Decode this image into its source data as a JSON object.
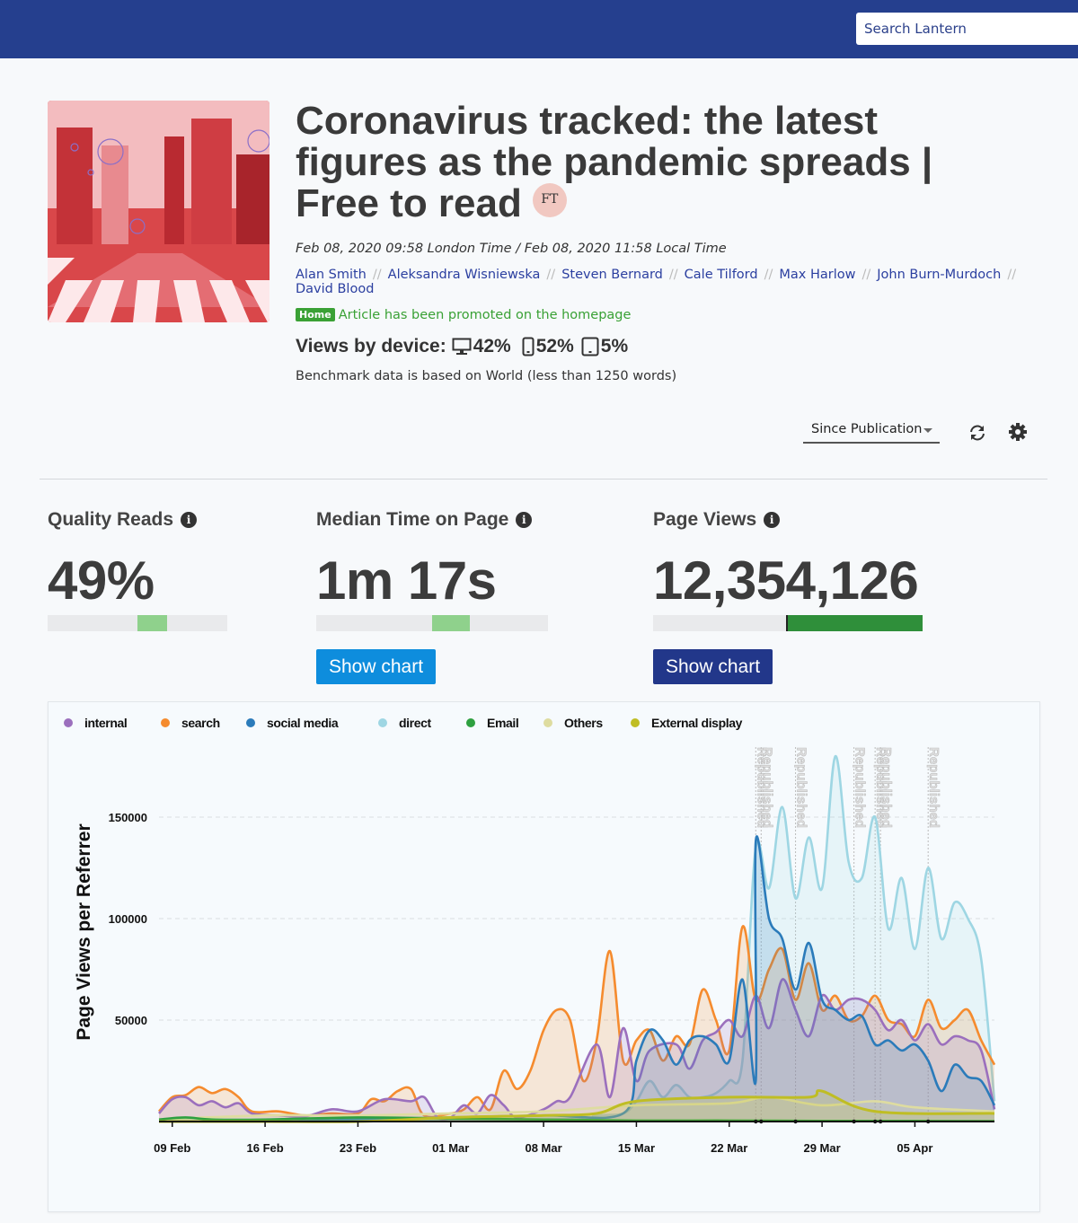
{
  "search": {
    "placeholder": "Search Lantern"
  },
  "article": {
    "title": "Coronavirus tracked: the latest figures as the pandemic spreads | Free to read",
    "publisher_badge": "FT",
    "dates": "Feb 08, 2020 09:58 London Time / Feb 08, 2020 11:58 Local Time",
    "authors": [
      "Alan Smith",
      "Aleksandra Wisniewska",
      "Steven Bernard",
      "Cale Tilford",
      "Max Harlow",
      "John Burn-Murdoch",
      "David Blood"
    ],
    "author_separator": "//",
    "promo_badge": "Home",
    "promo_text": "Article has been promoted on the homepage",
    "devices_label": "Views by device:",
    "devices": [
      {
        "icon": "desktop-icon",
        "value": "42%"
      },
      {
        "icon": "mobile-icon",
        "value": "52%"
      },
      {
        "icon": "tablet-icon",
        "value": "5%"
      }
    ],
    "benchmark_note": "Benchmark data is based on World (less than 1250 words)"
  },
  "controls": {
    "period_label": "Since Publication",
    "refresh_icon": "refresh-icon",
    "settings_icon": "gear-icon"
  },
  "metrics": {
    "quality_reads": {
      "label": "Quality Reads",
      "value": "49%",
      "benchmark_band": [
        0.5,
        0.66
      ]
    },
    "median_time": {
      "label": "Median Time on Page",
      "value": "1m 17s",
      "benchmark_band": [
        0.5,
        0.66
      ],
      "button_label": "Show chart",
      "button_color": "#0e8ddd"
    },
    "page_views": {
      "label": "Page Views",
      "value": "12,354,126",
      "bar_fill_start": 0.5,
      "button_label": "Show chart",
      "button_color": "#22378a"
    }
  },
  "colors": {
    "topbar": "#253f8e",
    "link": "#2b3fa0",
    "promo_green": "#3aa135",
    "benchmark_green": "#8fd18c",
    "pageviews_green": "#2f8f3a"
  },
  "chart_data": {
    "type": "area",
    "ylabel": "Page Views per Referrer",
    "ylim": [
      0,
      150000
    ],
    "yticks": [
      50000,
      100000,
      150000
    ],
    "x_start": "2020-02-08",
    "x_end": "2020-04-11",
    "xticks": [
      {
        "date": "2020-02-09",
        "label": "09 Feb"
      },
      {
        "date": "2020-02-16",
        "label": "16 Feb"
      },
      {
        "date": "2020-02-23",
        "label": "23 Feb"
      },
      {
        "date": "2020-03-01",
        "label": "01 Mar"
      },
      {
        "date": "2020-03-08",
        "label": "08 Mar"
      },
      {
        "date": "2020-03-15",
        "label": "15 Mar"
      },
      {
        "date": "2020-03-22",
        "label": "22 Mar"
      },
      {
        "date": "2020-03-29",
        "label": "29 Mar"
      },
      {
        "date": "2020-04-05",
        "label": "05 Apr"
      }
    ],
    "annotations": [
      {
        "date": "2020-03-24",
        "label": "Republished"
      },
      {
        "date": "2020-03-24",
        "label": "Republished"
      },
      {
        "date": "2020-03-27",
        "label": "Republished"
      },
      {
        "date": "2020-03-31",
        "label": "Republished"
      },
      {
        "date": "2020-04-02",
        "label": "Republished"
      },
      {
        "date": "2020-04-02",
        "label": "Republished"
      },
      {
        "date": "2020-04-06",
        "label": "Republished"
      }
    ],
    "legend_placement": "top",
    "grid": "horizontal-dashed",
    "series": [
      {
        "name": "internal",
        "color": "#9b6fbd",
        "points": [
          [
            "2020-02-08",
            4000
          ],
          [
            "2020-02-09",
            11000
          ],
          [
            "2020-02-10",
            12000
          ],
          [
            "2020-02-11",
            8000
          ],
          [
            "2020-02-12",
            10000
          ],
          [
            "2020-02-13",
            7000
          ],
          [
            "2020-02-14",
            9000
          ],
          [
            "2020-02-15",
            4000
          ],
          [
            "2020-02-17",
            3000
          ],
          [
            "2020-02-19",
            2500
          ],
          [
            "2020-02-21",
            6000
          ],
          [
            "2020-02-23",
            5000
          ],
          [
            "2020-02-25",
            11000
          ],
          [
            "2020-02-27",
            10000
          ],
          [
            "2020-02-28",
            12000
          ],
          [
            "2020-02-29",
            2000
          ],
          [
            "2020-03-01",
            2000
          ],
          [
            "2020-03-02",
            8000
          ],
          [
            "2020-03-03",
            4000
          ],
          [
            "2020-03-04",
            13000
          ],
          [
            "2020-03-05",
            8000
          ],
          [
            "2020-03-06",
            2000
          ],
          [
            "2020-03-08",
            6000
          ],
          [
            "2020-03-09",
            10000
          ],
          [
            "2020-03-10",
            12000
          ],
          [
            "2020-03-12",
            38000
          ],
          [
            "2020-03-13",
            12000
          ],
          [
            "2020-03-14",
            46000
          ],
          [
            "2020-03-15",
            20000
          ],
          [
            "2020-03-16",
            35000
          ],
          [
            "2020-03-18",
            38000
          ],
          [
            "2020-03-19",
            26000
          ],
          [
            "2020-03-20",
            40000
          ],
          [
            "2020-03-21",
            44000
          ],
          [
            "2020-03-22",
            50000
          ],
          [
            "2020-03-23",
            42000
          ],
          [
            "2020-03-24",
            62000
          ],
          [
            "2020-03-25",
            46000
          ],
          [
            "2020-03-26",
            70000
          ],
          [
            "2020-03-27",
            55000
          ],
          [
            "2020-03-28",
            42000
          ],
          [
            "2020-03-29",
            62000
          ],
          [
            "2020-03-30",
            55000
          ],
          [
            "2020-03-31",
            60000
          ],
          [
            "2020-04-01",
            60000
          ],
          [
            "2020-04-02",
            55000
          ],
          [
            "2020-04-03",
            45000
          ],
          [
            "2020-04-04",
            50000
          ],
          [
            "2020-04-05",
            40000
          ],
          [
            "2020-04-06",
            48000
          ],
          [
            "2020-04-07",
            38000
          ],
          [
            "2020-04-08",
            42000
          ],
          [
            "2020-04-09",
            40000
          ],
          [
            "2020-04-10",
            35000
          ],
          [
            "2020-04-11",
            6000
          ]
        ]
      },
      {
        "name": "search",
        "color": "#f58b2e",
        "points": [
          [
            "2020-02-08",
            5000
          ],
          [
            "2020-02-09",
            12000
          ],
          [
            "2020-02-10",
            13000
          ],
          [
            "2020-02-11",
            17000
          ],
          [
            "2020-02-12",
            14000
          ],
          [
            "2020-02-13",
            16000
          ],
          [
            "2020-02-14",
            12000
          ],
          [
            "2020-02-15",
            5000
          ],
          [
            "2020-02-17",
            5000
          ],
          [
            "2020-02-19",
            3000
          ],
          [
            "2020-02-21",
            4000
          ],
          [
            "2020-02-23",
            4000
          ],
          [
            "2020-02-24",
            11000
          ],
          [
            "2020-02-25",
            10000
          ],
          [
            "2020-02-26",
            15000
          ],
          [
            "2020-02-27",
            16000
          ],
          [
            "2020-02-28",
            3000
          ],
          [
            "2020-03-01",
            4000
          ],
          [
            "2020-03-02",
            6000
          ],
          [
            "2020-03-03",
            12000
          ],
          [
            "2020-03-04",
            6000
          ],
          [
            "2020-03-05",
            25000
          ],
          [
            "2020-03-06",
            16000
          ],
          [
            "2020-03-07",
            25000
          ],
          [
            "2020-03-08",
            45000
          ],
          [
            "2020-03-09",
            55000
          ],
          [
            "2020-03-10",
            50000
          ],
          [
            "2020-03-11",
            20000
          ],
          [
            "2020-03-12",
            40000
          ],
          [
            "2020-03-13",
            84000
          ],
          [
            "2020-03-14",
            30000
          ],
          [
            "2020-03-15",
            40000
          ],
          [
            "2020-03-16",
            45000
          ],
          [
            "2020-03-17",
            30000
          ],
          [
            "2020-03-18",
            42000
          ],
          [
            "2020-03-19",
            38000
          ],
          [
            "2020-03-20",
            65000
          ],
          [
            "2020-03-21",
            50000
          ],
          [
            "2020-03-22",
            35000
          ],
          [
            "2020-03-23",
            96000
          ],
          [
            "2020-03-24",
            60000
          ],
          [
            "2020-03-25",
            75000
          ],
          [
            "2020-03-26",
            85000
          ],
          [
            "2020-03-27",
            60000
          ],
          [
            "2020-03-28",
            78000
          ],
          [
            "2020-03-29",
            55000
          ],
          [
            "2020-03-30",
            62000
          ],
          [
            "2020-03-31",
            50000
          ],
          [
            "2020-04-01",
            52000
          ],
          [
            "2020-04-02",
            62000
          ],
          [
            "2020-04-03",
            50000
          ],
          [
            "2020-04-04",
            48000
          ],
          [
            "2020-04-05",
            42000
          ],
          [
            "2020-04-06",
            60000
          ],
          [
            "2020-04-07",
            46000
          ],
          [
            "2020-04-08",
            50000
          ],
          [
            "2020-04-09",
            55000
          ],
          [
            "2020-04-10",
            40000
          ],
          [
            "2020-04-11",
            28000
          ]
        ]
      },
      {
        "name": "social media",
        "color": "#2b7bba",
        "points": [
          [
            "2020-02-08",
            0
          ],
          [
            "2020-02-16",
            0
          ],
          [
            "2020-02-23",
            1000
          ],
          [
            "2020-03-01",
            2000
          ],
          [
            "2020-03-08",
            3000
          ],
          [
            "2020-03-14",
            4000
          ],
          [
            "2020-03-15",
            30000
          ],
          [
            "2020-03-16",
            45000
          ],
          [
            "2020-03-17",
            40000
          ],
          [
            "2020-03-18",
            28000
          ],
          [
            "2020-03-19",
            40000
          ],
          [
            "2020-03-20",
            42000
          ],
          [
            "2020-03-21",
            38000
          ],
          [
            "2020-03-22",
            30000
          ],
          [
            "2020-03-23",
            70000
          ],
          [
            "2020-03-24",
            20000
          ],
          [
            "2020-03-24",
            138000
          ],
          [
            "2020-03-25",
            100000
          ],
          [
            "2020-03-26",
            90000
          ],
          [
            "2020-03-27",
            65000
          ],
          [
            "2020-03-28",
            88000
          ],
          [
            "2020-03-29",
            60000
          ],
          [
            "2020-03-30",
            55000
          ],
          [
            "2020-03-31",
            50000
          ],
          [
            "2020-04-01",
            52000
          ],
          [
            "2020-04-02",
            38000
          ],
          [
            "2020-04-03",
            40000
          ],
          [
            "2020-04-04",
            35000
          ],
          [
            "2020-04-05",
            38000
          ],
          [
            "2020-04-06",
            30000
          ],
          [
            "2020-04-07",
            15000
          ],
          [
            "2020-04-08",
            28000
          ],
          [
            "2020-04-09",
            22000
          ],
          [
            "2020-04-10",
            20000
          ],
          [
            "2020-04-11",
            8000
          ]
        ]
      },
      {
        "name": "direct",
        "color": "#9ed6e3",
        "points": [
          [
            "2020-02-08",
            0
          ],
          [
            "2020-03-08",
            1000
          ],
          [
            "2020-03-12",
            3000
          ],
          [
            "2020-03-14",
            4000
          ],
          [
            "2020-03-15",
            10000
          ],
          [
            "2020-03-16",
            20000
          ],
          [
            "2020-03-17",
            12000
          ],
          [
            "2020-03-18",
            18000
          ],
          [
            "2020-03-19",
            12000
          ],
          [
            "2020-03-20",
            12000
          ],
          [
            "2020-03-21",
            14000
          ],
          [
            "2020-03-22",
            20000
          ],
          [
            "2020-03-23",
            30000
          ],
          [
            "2020-03-24",
            135000
          ],
          [
            "2020-03-25",
            115000
          ],
          [
            "2020-03-26",
            155000
          ],
          [
            "2020-03-27",
            110000
          ],
          [
            "2020-03-28",
            140000
          ],
          [
            "2020-03-29",
            115000
          ],
          [
            "2020-03-30",
            180000
          ],
          [
            "2020-03-31",
            128000
          ],
          [
            "2020-04-01",
            120000
          ],
          [
            "2020-04-02",
            150000
          ],
          [
            "2020-04-03",
            95000
          ],
          [
            "2020-04-04",
            120000
          ],
          [
            "2020-04-05",
            85000
          ],
          [
            "2020-04-06",
            125000
          ],
          [
            "2020-04-07",
            90000
          ],
          [
            "2020-04-08",
            108000
          ],
          [
            "2020-04-09",
            100000
          ],
          [
            "2020-04-10",
            80000
          ],
          [
            "2020-04-11",
            10000
          ]
        ]
      },
      {
        "name": "Email",
        "color": "#2ea040",
        "points": [
          [
            "2020-02-08",
            1000
          ],
          [
            "2020-02-10",
            2000
          ],
          [
            "2020-02-12",
            1000
          ],
          [
            "2020-02-16",
            1000
          ],
          [
            "2020-02-23",
            2000
          ],
          [
            "2020-03-01",
            1500
          ],
          [
            "2020-03-08",
            1000
          ],
          [
            "2020-03-15",
            500
          ],
          [
            "2020-03-22",
            500
          ],
          [
            "2020-03-29",
            300
          ],
          [
            "2020-04-05",
            300
          ],
          [
            "2020-04-11",
            200
          ]
        ]
      },
      {
        "name": "Others",
        "color": "#dedca0",
        "points": [
          [
            "2020-02-08",
            1000
          ],
          [
            "2020-02-16",
            3000
          ],
          [
            "2020-02-23",
            3000
          ],
          [
            "2020-03-01",
            4000
          ],
          [
            "2020-03-08",
            5000
          ],
          [
            "2020-03-15",
            8000
          ],
          [
            "2020-03-22",
            9000
          ],
          [
            "2020-03-25",
            12000
          ],
          [
            "2020-03-29",
            8000
          ],
          [
            "2020-04-02",
            10000
          ],
          [
            "2020-04-05",
            7000
          ],
          [
            "2020-04-11",
            5000
          ]
        ]
      },
      {
        "name": "External display",
        "color": "#bfbd24",
        "points": [
          [
            "2020-02-08",
            0
          ],
          [
            "2020-02-16",
            0
          ],
          [
            "2020-02-23",
            0
          ],
          [
            "2020-03-01",
            2000
          ],
          [
            "2020-03-08",
            3000
          ],
          [
            "2020-03-12",
            4000
          ],
          [
            "2020-03-15",
            10000
          ],
          [
            "2020-03-22",
            12000
          ],
          [
            "2020-03-28",
            12000
          ],
          [
            "2020-03-29",
            15000
          ],
          [
            "2020-04-02",
            5000
          ],
          [
            "2020-04-11",
            4000
          ]
        ]
      }
    ]
  }
}
